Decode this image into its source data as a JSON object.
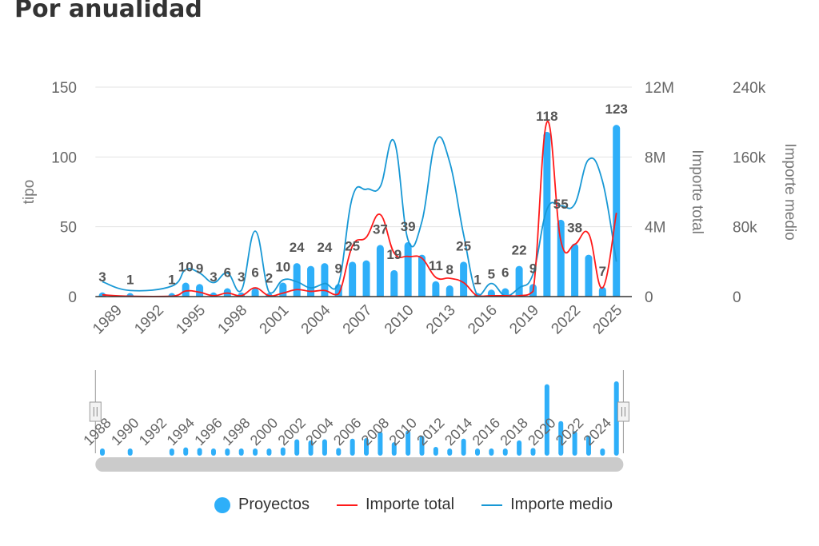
{
  "title": "Por anualidad",
  "colors": {
    "bars": "#2eaff9",
    "importe_total": "#ff1a1a",
    "importe_medio": "#1898d5"
  },
  "legend": [
    {
      "label": "Proyectos",
      "icon": "circle"
    },
    {
      "label": "Importe total",
      "icon": "line"
    },
    {
      "label": "Importe medio",
      "icon": "line"
    }
  ],
  "chart_data": {
    "type": "bar+line",
    "title": "Por anualidad",
    "categories": [
      "1988",
      "1989",
      "1990",
      "1991",
      "1992",
      "1993",
      "1994",
      "1995",
      "1996",
      "1997",
      "1998",
      "1999",
      "2000",
      "2001",
      "2002",
      "2003",
      "2004",
      "2005",
      "2006",
      "2007",
      "2008",
      "2009",
      "2010",
      "2011",
      "2012",
      "2013",
      "2014",
      "2015",
      "2016",
      "2017",
      "2018",
      "2019",
      "2020",
      "2021",
      "2022",
      "2023",
      "2024",
      "2025"
    ],
    "x_tick_labels": [
      "1989",
      "1992",
      "1995",
      "1998",
      "2001",
      "2004",
      "2007",
      "2010",
      "2013",
      "2016",
      "2019",
      "2022",
      "2025"
    ],
    "slider_tick_labels": [
      "1988",
      "1990",
      "1992",
      "1994",
      "1996",
      "1998",
      "2000",
      "2002",
      "2004",
      "2006",
      "2008",
      "2010",
      "2012",
      "2014",
      "2016",
      "2018",
      "2020",
      "2022",
      "2024"
    ],
    "series": [
      {
        "name": "Proyectos",
        "type": "bar",
        "axis": "tipo",
        "values": [
          3,
          null,
          1,
          null,
          null,
          1,
          10,
          9,
          3,
          6,
          3,
          6,
          2,
          10,
          24,
          22,
          24,
          9,
          25,
          26,
          37,
          19,
          39,
          30,
          11,
          8,
          25,
          1,
          5,
          6,
          22,
          9,
          118,
          55,
          38,
          30,
          7,
          123
        ],
        "labels": [
          "3",
          null,
          "1",
          null,
          null,
          "1",
          "10",
          "9",
          "3",
          "6",
          "3",
          "6",
          "2",
          "10",
          "24",
          null,
          "24",
          "9",
          "25",
          null,
          "37",
          "19",
          "39",
          null,
          "11",
          "8",
          "25",
          "1",
          "5",
          "6",
          "22",
          "9",
          "118",
          "55",
          "38",
          null,
          "7",
          "123"
        ]
      },
      {
        "name": "Importe total",
        "type": "line",
        "smooth": true,
        "axis": "Importe total",
        "values": [
          100000,
          null,
          20000,
          null,
          null,
          20000,
          320000,
          250000,
          50000,
          200000,
          50000,
          500000,
          50000,
          200000,
          400000,
          300000,
          350000,
          150000,
          2900000,
          3400000,
          4700000,
          2500000,
          2300000,
          2200000,
          1100000,
          1050000,
          800000,
          30000,
          50000,
          50000,
          50000,
          300000,
          10000000,
          3200000,
          3000000,
          3600000,
          500000,
          4800000
        ]
      },
      {
        "name": "Importe medio",
        "type": "line",
        "smooth": true,
        "axis": "Importe medio",
        "values": [
          17000,
          null,
          7000,
          null,
          null,
          12000,
          31000,
          27000,
          16000,
          27000,
          7000,
          75000,
          5000,
          19000,
          17000,
          10000,
          15000,
          15000,
          114000,
          123000,
          126000,
          178000,
          65000,
          86000,
          178000,
          154000,
          71000,
          1000,
          15000,
          1000,
          10000,
          26000,
          100000,
          104000,
          106000,
          157000,
          132000,
          40000
        ]
      }
    ],
    "y_axes": [
      {
        "name": "tipo",
        "position": "left",
        "range": [
          0,
          150
        ],
        "ticks": [
          "0",
          "50",
          "100",
          "150"
        ]
      },
      {
        "name": "Importe total",
        "position": "right",
        "range": [
          0,
          12000000
        ],
        "ticks": [
          "0",
          "4M",
          "8M",
          "12M"
        ]
      },
      {
        "name": "Importe medio",
        "position": "right-outer",
        "range": [
          0,
          240000
        ],
        "ticks": [
          "0",
          "80k",
          "160k",
          "240k"
        ]
      }
    ],
    "grid": true,
    "legend_position": "bottom",
    "data_zoom": {
      "start_percent": 0,
      "end_percent": 100
    }
  }
}
